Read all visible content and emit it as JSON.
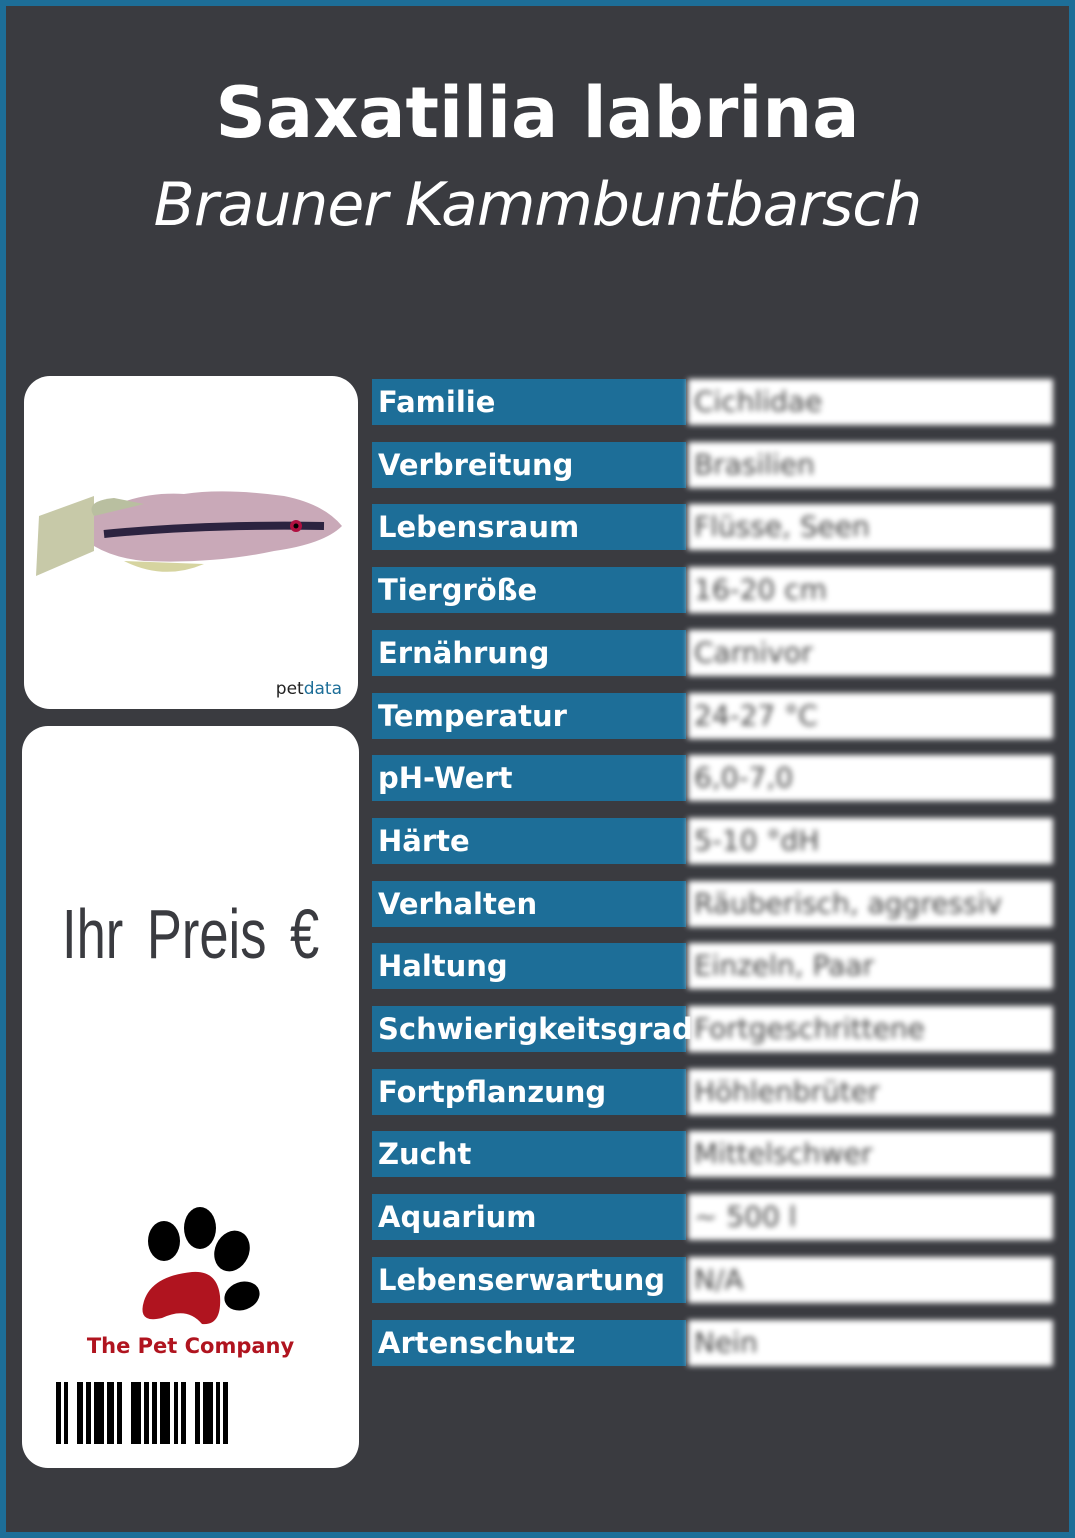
{
  "title": "Saxatilia labrina",
  "subtitle": "Brauner Kammbuntbarsch",
  "image_credit": "petdata",
  "price_label": "Ihr Preis €",
  "company": "The Pet Company",
  "colors": {
    "background": "#3a3b40",
    "accent": "#1d6e98",
    "brand_red": "#b0141f"
  },
  "rows": [
    {
      "label": "Familie",
      "value": "Cichlidae"
    },
    {
      "label": "Verbreitung",
      "value": "Brasilien"
    },
    {
      "label": "Lebensraum",
      "value": "Flüsse, Seen"
    },
    {
      "label": "Tiergröße",
      "value": "16-20 cm"
    },
    {
      "label": "Ernährung",
      "value": "Carnivor"
    },
    {
      "label": "Temperatur",
      "value": "24-27 °C"
    },
    {
      "label": "pH-Wert",
      "value": "6,0-7,0"
    },
    {
      "label": "Härte",
      "value": "5-10 °dH"
    },
    {
      "label": "Verhalten",
      "value": "Räuberisch, aggressiv"
    },
    {
      "label": "Haltung",
      "value": "Einzeln, Paar"
    },
    {
      "label": "Schwierigkeitsgrad",
      "value": "Fortgeschrittene"
    },
    {
      "label": "Fortpflanzung",
      "value": "Höhlenbrüter"
    },
    {
      "label": "Zucht",
      "value": "Mittelschwer"
    },
    {
      "label": "Aquarium",
      "value": "~ 500 l"
    },
    {
      "label": "Lebenserwartung",
      "value": "N/A"
    },
    {
      "label": "Artenschutz",
      "value": "Nein"
    }
  ]
}
